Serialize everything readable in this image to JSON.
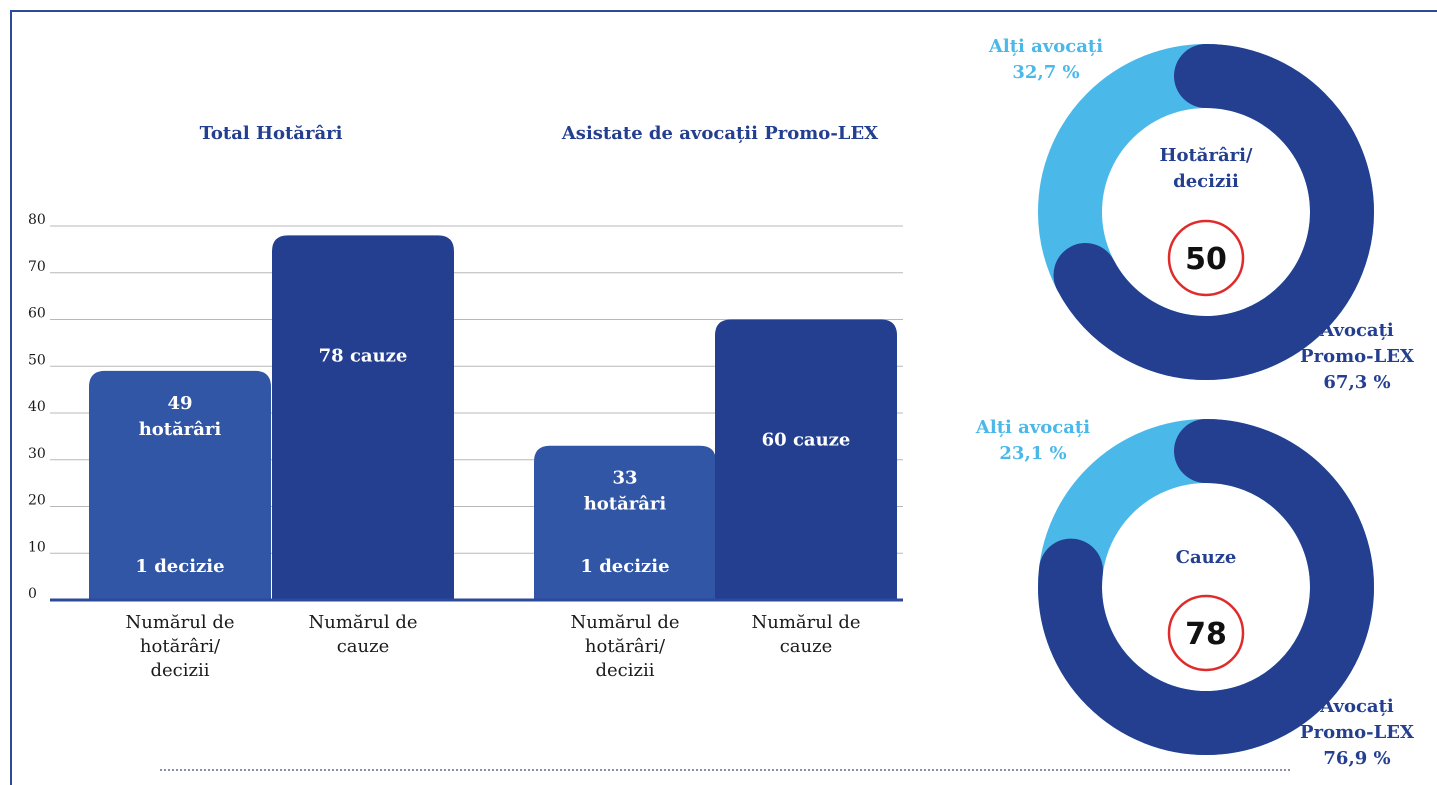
{
  "chart_data": [
    {
      "type": "bar",
      "ylim": [
        0,
        80
      ],
      "yticks": [
        0,
        10,
        20,
        30,
        40,
        50,
        60,
        70,
        80
      ],
      "grid": true,
      "colors": {
        "decisions": "#3256a6",
        "cases": "#243f8f"
      },
      "groups": [
        {
          "title": "Total Hotărâri",
          "bars": [
            {
              "category": "Numărul de hotărâri/ decizii",
              "category_lines": [
                "Numărul de",
                "hotărâri/",
                "decizii"
              ],
              "value": 49,
              "label_lines": [
                "49",
                "hotărâri"
              ],
              "sublabel": "1 decizie"
            },
            {
              "category": "Numărul de cauze",
              "category_lines": [
                "Numărul de",
                "cauze"
              ],
              "value": 78,
              "label_lines": [
                "78 cauze"
              ],
              "sublabel": ""
            }
          ]
        },
        {
          "title": "Asistate de avocații Promo-LEX",
          "bars": [
            {
              "category": "Numărul de hotărâri/ decizii",
              "category_lines": [
                "Numărul de",
                "hotărâri/",
                "decizii"
              ],
              "value": 33,
              "label_lines": [
                "33",
                "hotărâri"
              ],
              "sublabel": "1 decizie"
            },
            {
              "category": "Numărul de cauze",
              "category_lines": [
                "Numărul de",
                "cauze"
              ],
              "value": 60,
              "label_lines": [
                "60 cauze"
              ],
              "sublabel": ""
            }
          ]
        }
      ]
    },
    {
      "type": "pie",
      "donut": true,
      "center_lines": [
        "Hotărâri/",
        "decizii"
      ],
      "total": "50",
      "slices": [
        {
          "label_lines": [
            "Alți avocați",
            "32,7 %"
          ],
          "value": 32.7,
          "color": "#4ab9ea"
        },
        {
          "label_lines": [
            "Avocați",
            "Promo-LEX",
            "67,3 %"
          ],
          "value": 67.3,
          "color": "#243f8f"
        }
      ]
    },
    {
      "type": "pie",
      "donut": true,
      "center_lines": [
        "Cauze"
      ],
      "total": "78",
      "slices": [
        {
          "label_lines": [
            "Alți avocați",
            "23,1 %"
          ],
          "value": 23.1,
          "color": "#4ab9ea"
        },
        {
          "label_lines": [
            "Avocați",
            "Promo-LEX",
            "76,9 %"
          ],
          "value": 76.9,
          "color": "#243f8f"
        }
      ]
    }
  ]
}
